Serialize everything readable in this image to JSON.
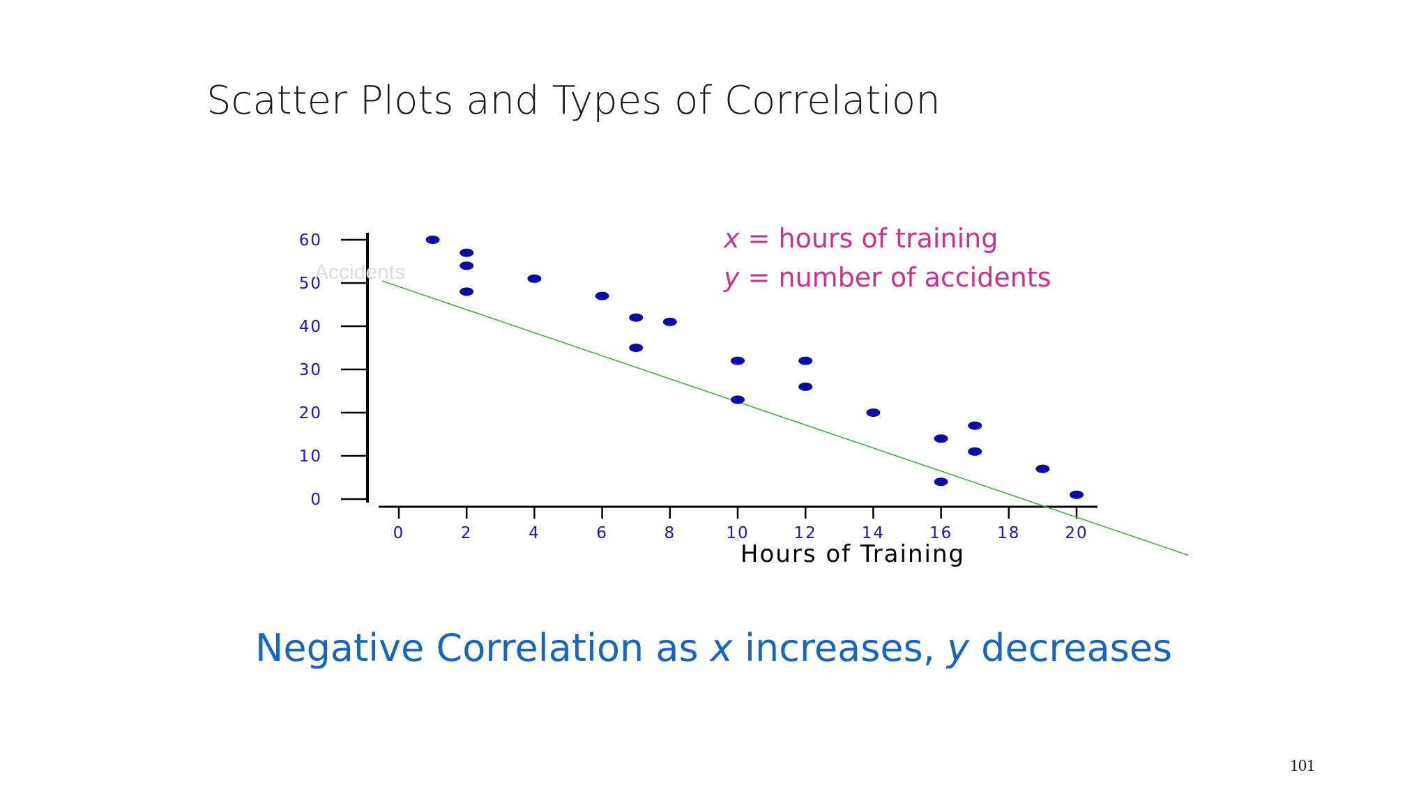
{
  "slide": {
    "title": "Scatter Plots and Types of Correlation",
    "legend": {
      "x_var": "x",
      "x_text": " = hours of training",
      "y_var": "y",
      "y_text": " = number of accidents"
    },
    "caption": {
      "part1": "Negative Correlation as ",
      "var_x": "x",
      "part2": " increases, ",
      "var_y": "y",
      "part3": " decreases"
    },
    "page_number": "101"
  },
  "colors": {
    "points": "#0a0aa8",
    "trendline": "#3cb43c",
    "tick_labels": "#1a14c8",
    "legend": "#c8348c",
    "caption": "#1666c0"
  },
  "chart_data": {
    "type": "scatter",
    "title": "",
    "xlabel": "Hours of Training",
    "ylabel": "Accidents",
    "xlim": [
      0,
      20
    ],
    "ylim": [
      0,
      60
    ],
    "xticks": [
      0,
      2,
      4,
      6,
      8,
      10,
      12,
      14,
      16,
      18,
      20
    ],
    "yticks": [
      0,
      10,
      20,
      30,
      40,
      50,
      60
    ],
    "grid": false,
    "points": [
      {
        "x": 1,
        "y": 60
      },
      {
        "x": 2,
        "y": 57
      },
      {
        "x": 2,
        "y": 54
      },
      {
        "x": 2,
        "y": 48
      },
      {
        "x": 4,
        "y": 51
      },
      {
        "x": 6,
        "y": 47
      },
      {
        "x": 7,
        "y": 42
      },
      {
        "x": 7,
        "y": 35
      },
      {
        "x": 8,
        "y": 41
      },
      {
        "x": 10,
        "y": 32
      },
      {
        "x": 10,
        "y": 23
      },
      {
        "x": 12,
        "y": 32
      },
      {
        "x": 12,
        "y": 26
      },
      {
        "x": 14,
        "y": 20
      },
      {
        "x": 16,
        "y": 14
      },
      {
        "x": 16,
        "y": 4
      },
      {
        "x": 17,
        "y": 17
      },
      {
        "x": 17,
        "y": 11
      },
      {
        "x": 19,
        "y": 7
      },
      {
        "x": 20,
        "y": 1
      }
    ],
    "trendline": {
      "start": {
        "x": -0.5,
        "y": 50.5
      },
      "end": {
        "x": 23.3,
        "y": -13
      }
    }
  }
}
